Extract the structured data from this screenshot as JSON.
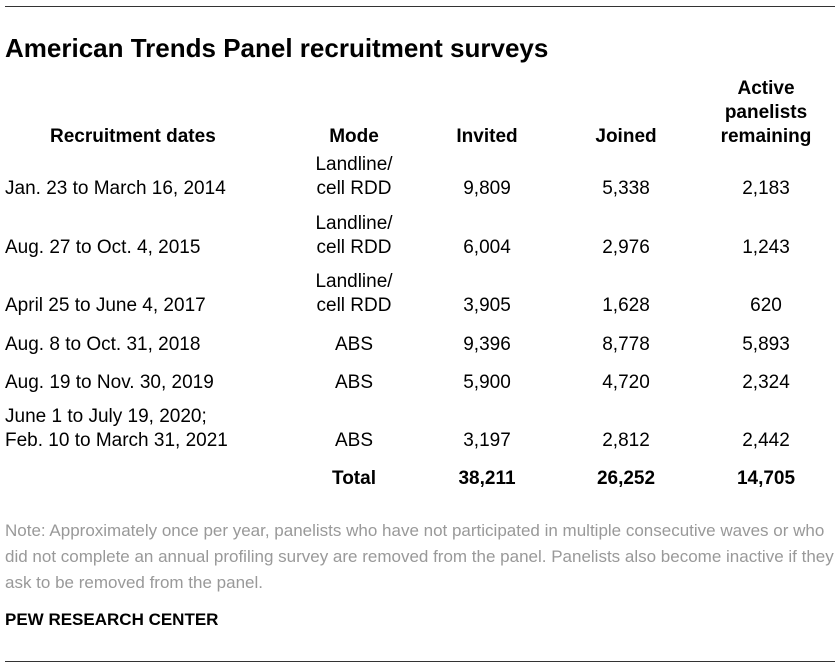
{
  "title": "American Trends Panel recruitment surveys",
  "table": {
    "headers": {
      "dates": "Recruitment dates",
      "mode": "Mode",
      "invited": "Invited",
      "joined": "Joined",
      "active": [
        "Active",
        "panelists",
        "remaining"
      ]
    },
    "rows": [
      {
        "dates": [
          "Jan. 23 to March 16, 2014"
        ],
        "mode": [
          "Landline/",
          "cell RDD"
        ],
        "invited": "9,809",
        "joined": "5,338",
        "active": "2,183"
      },
      {
        "dates": [
          "Aug. 27 to Oct. 4, 2015"
        ],
        "mode": [
          "Landline/",
          "cell RDD"
        ],
        "invited": "6,004",
        "joined": "2,976",
        "active": "1,243"
      },
      {
        "dates": [
          "April 25 to June 4, 2017"
        ],
        "mode": [
          "Landline/",
          "cell RDD"
        ],
        "invited": "3,905",
        "joined": "1,628",
        "active": "620"
      },
      {
        "dates": [
          "Aug. 8 to Oct. 31, 2018"
        ],
        "mode": [
          "ABS"
        ],
        "invited": "9,396",
        "joined": "8,778",
        "active": "5,893"
      },
      {
        "dates": [
          "Aug. 19 to Nov. 30, 2019"
        ],
        "mode": [
          "ABS"
        ],
        "invited": "5,900",
        "joined": "4,720",
        "active": "2,324"
      },
      {
        "dates": [
          "June 1 to July 19, 2020;",
          "Feb. 10 to March 31, 2021"
        ],
        "mode": [
          "ABS"
        ],
        "invited": "3,197",
        "joined": "2,812",
        "active": "2,442"
      }
    ],
    "total": {
      "label": "Total",
      "invited": "38,211",
      "joined": "26,252",
      "active": "14,705"
    }
  },
  "note": "Note: Approximately once per year, panelists who have not participated in multiple consecutive waves or who did not complete an annual profiling survey are removed from the panel. Panelists also become inactive if they ask to be removed from the panel.",
  "source": "PEW RESEARCH CENTER",
  "colors": {
    "text": "#000000",
    "note": "#999999",
    "rule": "#333333",
    "background": "#ffffff"
  }
}
